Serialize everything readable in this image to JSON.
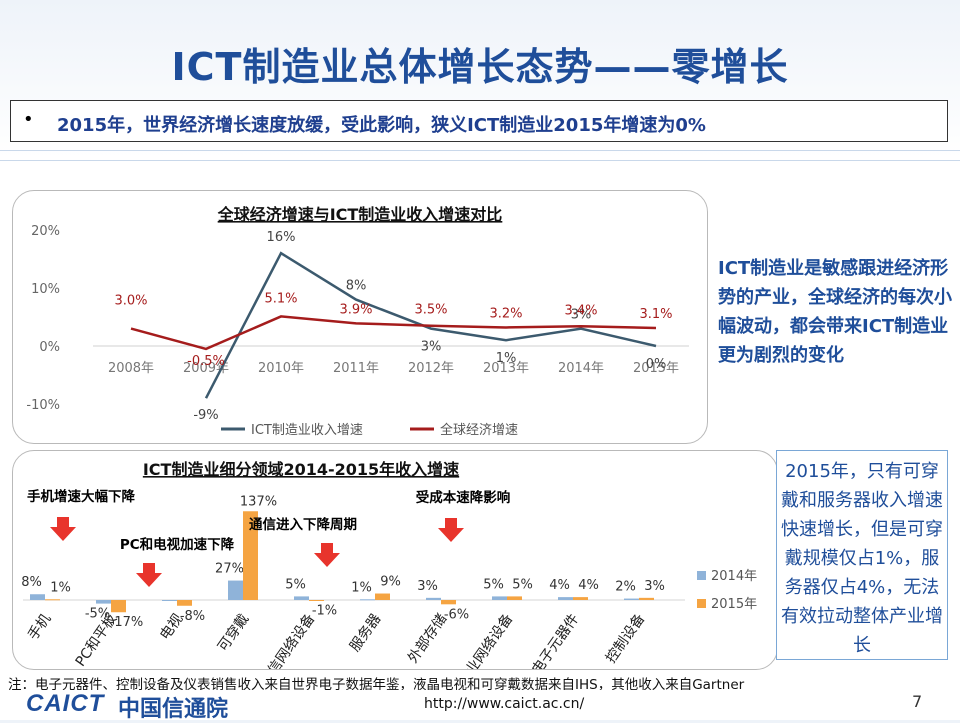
{
  "title": "ICT制造业总体增长态势——零增长",
  "bullet": "2015年，世界经济增长速度放缓，受此影响，狭义ICT制造业2015年增速为0%",
  "side_text_1": "ICT制造业是敏感跟进经济形势的产业，全球经济的每次小幅波动，都会带来ICT制造业更为剧烈的变化",
  "side_text_2": "2015年，只有可穿戴和服务器收入增速快速增长，但是可穿戴规模仅占1%，服务器仅占4%，无法有效拉动整体产业增长",
  "footnote": "注：电子元器件、控制设备及仪表销售收入来自世界电子数据年鉴，液晶电视和可穿戴数据来自IHS，其他收入来自Gartner",
  "footer": {
    "logo": "CAICT",
    "logo_cn": "中国信通院",
    "url": "http://www.caict.ac.cn/",
    "page": "7"
  },
  "colors": {
    "title": "#1f4e9a",
    "ict_line": "#3c5a6e",
    "global_line": "#a51c1c",
    "bar_2014": "#8fb3d9",
    "bar_2015": "#f5a442"
  },
  "chart_data": [
    {
      "type": "line",
      "title": "全球经济增速与ICT制造业收入增速对比",
      "categories": [
        "2008年",
        "2009年",
        "2010年",
        "2011年",
        "2012年",
        "2013年",
        "2014年",
        "2015年"
      ],
      "y_ticks": [
        "20%",
        "10%",
        "0%",
        "-10%"
      ],
      "ylim": [
        -10,
        20
      ],
      "legend_position": "bottom",
      "series": [
        {
          "name": "ICT制造业收入增速",
          "values": [
            null,
            -9,
            16,
            8,
            3,
            1,
            3,
            0
          ],
          "labels": [
            "",
            "-9%",
            "16%",
            "8%",
            "3%",
            "1%",
            "3%",
            "0%"
          ]
        },
        {
          "name": "全球经济增速",
          "values": [
            3.0,
            -0.5,
            5.1,
            3.9,
            3.5,
            3.2,
            3.4,
            3.1
          ],
          "labels": [
            "3.0%",
            "-0.5%",
            "5.1%",
            "3.9%",
            "3.5%",
            "3.2%",
            "3.4%",
            "3.1%"
          ]
        }
      ]
    },
    {
      "type": "bar",
      "title": "ICT制造业细分领域2014-2015年收入增速",
      "categories": [
        "手机",
        "PC和平板",
        "电视",
        "可穿戴",
        "通信网络设备",
        "服务器",
        "外部存储",
        "企业网络设备",
        "电子元器件",
        "控制设备"
      ],
      "legend_position": "right",
      "series": [
        {
          "name": "2014年",
          "values": [
            8,
            -5,
            -1,
            27,
            5,
            1,
            3,
            5,
            4,
            2
          ],
          "labels": [
            "8%",
            "-5%",
            "",
            "27%",
            "5%",
            "1%",
            "3%",
            "5%",
            "4%",
            "2%"
          ]
        },
        {
          "name": "2015年",
          "values": [
            1,
            -17,
            -8,
            137,
            -1,
            9,
            -6,
            5,
            4,
            3
          ],
          "labels": [
            "1%",
            "-17%",
            "-8%",
            "137%",
            "-1%",
            "9%",
            "-6%",
            "5%",
            "4%",
            "3%"
          ]
        }
      ],
      "annotations": [
        "手机增速大幅下降",
        "PC和电视加速下降",
        "通信进入下降周期",
        "受成本速降影响"
      ]
    }
  ]
}
